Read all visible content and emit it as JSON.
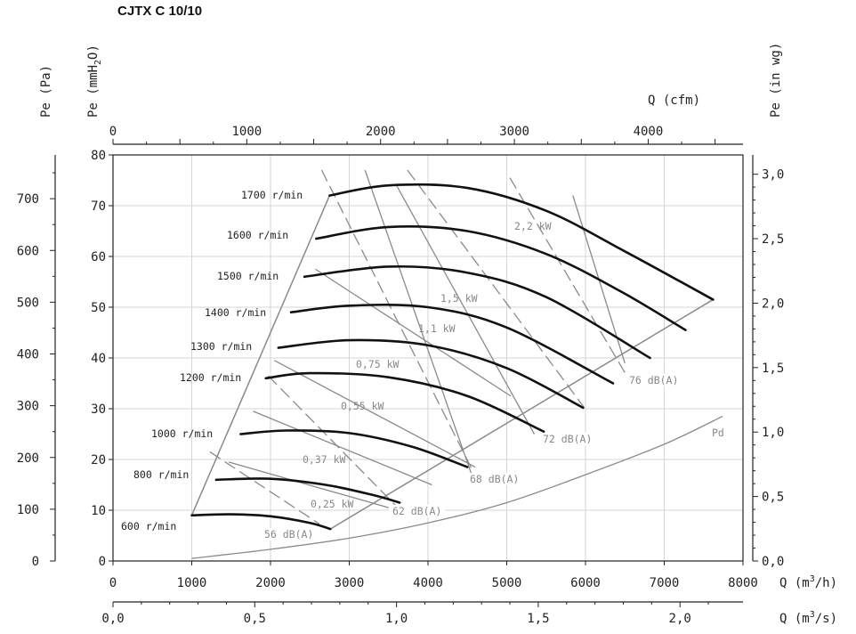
{
  "title": "CJTX C 10/10",
  "axes": {
    "left_pa_label": "Pe  (Pa)",
    "left_mmh2o_label": "Pe  (mmH",
    "left_mmh2o_sub": "2",
    "left_mmh2o_end": "O)",
    "right_label": "Pe  (in wg)",
    "top_label": "Q  (cfm)",
    "bottom_m3h_label": "Q  (m",
    "bottom_m3h_sup": "3",
    "bottom_m3h_end": "/h)",
    "bottom_m3s_label": "Q  (m",
    "bottom_m3s_sup": "3",
    "bottom_m3s_end": "/s)"
  },
  "chart_data": {
    "type": "line",
    "xlabel": "Q (m3/h)",
    "ylabel": "Pe (mmH2O)",
    "xlim": [
      0,
      8000
    ],
    "ylim": [
      0,
      80
    ],
    "grid": true,
    "ticks": {
      "m3h": [
        "0",
        "1000",
        "2000",
        "3000",
        "4000",
        "5000",
        "6000",
        "7000",
        "8000"
      ],
      "mmh2o": [
        "0",
        "10",
        "20",
        "30",
        "40",
        "50",
        "60",
        "70",
        "80"
      ],
      "pa": [
        {
          "v": 0,
          "t": "0"
        },
        {
          "v": 100,
          "t": "100"
        },
        {
          "v": 200,
          "t": "200"
        },
        {
          "v": 300,
          "t": "300"
        },
        {
          "v": 400,
          "t": "400"
        },
        {
          "v": 500,
          "t": "500"
        },
        {
          "v": 600,
          "t": "600"
        },
        {
          "v": 700,
          "t": "700"
        }
      ],
      "cfm": [
        {
          "v": 0,
          "t": "0"
        },
        {
          "v": 1000,
          "t": "1000"
        },
        {
          "v": 2000,
          "t": "2000"
        },
        {
          "v": 3000,
          "t": "3000"
        },
        {
          "v": 4000,
          "t": "4000"
        }
      ],
      "inwg": [
        {
          "v": 0,
          "t": "0,0"
        },
        {
          "v": 0.5,
          "t": "0,5"
        },
        {
          "v": 1.0,
          "t": "1,0"
        },
        {
          "v": 1.5,
          "t": "1,5"
        },
        {
          "v": 2.0,
          "t": "2,0"
        },
        {
          "v": 2.5,
          "t": "2,5"
        },
        {
          "v": 3.0,
          "t": "3,0"
        }
      ],
      "m3s": [
        {
          "v": 0,
          "t": "0,0"
        },
        {
          "v": 0.5,
          "t": "0,5"
        },
        {
          "v": 1.0,
          "t": "1,0"
        },
        {
          "v": 1.5,
          "t": "1,5"
        },
        {
          "v": 2.0,
          "t": "2,0"
        }
      ]
    },
    "speed_curves": [
      {
        "name": "600 r/min",
        "points": [
          [
            1000,
            9
          ],
          [
            1500,
            9.2
          ],
          [
            2000,
            8.8
          ],
          [
            2500,
            7.5
          ],
          [
            2760,
            6.3
          ]
        ]
      },
      {
        "name": "800 r/min",
        "points": [
          [
            1310,
            16
          ],
          [
            2000,
            16.2
          ],
          [
            2700,
            15
          ],
          [
            3300,
            13
          ],
          [
            3640,
            11.5
          ]
        ]
      },
      {
        "name": "1000 r/min",
        "points": [
          [
            1620,
            25
          ],
          [
            2200,
            25.7
          ],
          [
            3000,
            25.2
          ],
          [
            3800,
            22.5
          ],
          [
            4500,
            18.5
          ]
        ]
      },
      {
        "name": "1200 r/min",
        "points": [
          [
            1940,
            36
          ],
          [
            2500,
            37
          ],
          [
            3500,
            36.2
          ],
          [
            4500,
            32.5
          ],
          [
            5470,
            25.5
          ]
        ]
      },
      {
        "name": "1300 r/min",
        "points": [
          [
            2100,
            42
          ],
          [
            3000,
            43.5
          ],
          [
            4000,
            42.5
          ],
          [
            5000,
            38
          ],
          [
            5970,
            30.2
          ]
        ]
      },
      {
        "name": "1400 r/min",
        "points": [
          [
            2260,
            49
          ],
          [
            3000,
            50.3
          ],
          [
            4000,
            50
          ],
          [
            5000,
            46
          ],
          [
            6350,
            35
          ]
        ]
      },
      {
        "name": "1500 r/min",
        "points": [
          [
            2430,
            56
          ],
          [
            3500,
            58
          ],
          [
            4500,
            56.8
          ],
          [
            5500,
            52
          ],
          [
            6820,
            40
          ]
        ]
      },
      {
        "name": "1600 r/min",
        "points": [
          [
            2580,
            63.5
          ],
          [
            3500,
            65.8
          ],
          [
            4500,
            65
          ],
          [
            5500,
            60.5
          ],
          [
            6460,
            53
          ],
          [
            7270,
            45.5
          ]
        ]
      },
      {
        "name": "1700 r/min",
        "points": [
          [
            2750,
            72
          ],
          [
            3500,
            74
          ],
          [
            4500,
            73.5
          ],
          [
            5500,
            69
          ],
          [
            6500,
            61
          ],
          [
            7620,
            51.5
          ]
        ]
      }
    ],
    "boundary_left": [
      [
        1000,
        9
      ],
      [
        2750,
        72
      ]
    ],
    "boundary_right": [
      [
        2760,
        6.3
      ],
      [
        7620,
        51.5
      ]
    ],
    "pd_curve": {
      "name": "Pd",
      "points": [
        [
          1000,
          0.5
        ],
        [
          2000,
          2.3
        ],
        [
          3000,
          4.5
        ],
        [
          4000,
          7.5
        ],
        [
          5000,
          11.5
        ],
        [
          6000,
          17
        ],
        [
          7000,
          23
        ],
        [
          7740,
          28.5
        ]
      ]
    },
    "power_lines": [
      {
        "name": "0,25 kW",
        "p1": [
          1470,
          19.5
        ],
        "p2": [
          3500,
          10.5
        ]
      },
      {
        "name": "0,37 kW",
        "p1": [
          1780,
          29.5
        ],
        "p2": [
          4050,
          15
        ]
      },
      {
        "name": "0,55 kW",
        "p1": [
          2050,
          39.5
        ],
        "p2": [
          4600,
          18.5
        ]
      },
      {
        "name": "0,75 kW",
        "p1": [
          2570,
          57.5
        ],
        "p2": [
          5050,
          32.5
        ]
      },
      {
        "name": "1,1 kW",
        "p1": [
          3200,
          77
        ],
        "p2": [
          4600,
          15
        ]
      },
      {
        "name": "1,5 kW",
        "p1": [
          3600,
          74
        ],
        "p2": [
          5350,
          25
        ]
      },
      {
        "name": "2,2 kW",
        "p1": [
          5840,
          72
        ],
        "p2": [
          6500,
          39
        ]
      }
    ],
    "db_lines": [
      {
        "name": "56 dB(A)",
        "p1": [
          1230,
          21.5
        ],
        "p2": [
          2620,
          7.3
        ]
      },
      {
        "name": "62 dB(A)",
        "p1": [
          1970,
          36.5
        ],
        "p2": [
          3610,
          10.6
        ]
      },
      {
        "name": "68 dB(A)",
        "p1": [
          2650,
          77
        ],
        "p2": [
          4570,
          17.7
        ]
      },
      {
        "name": "72 dB(A)",
        "p1": [
          3740,
          77
        ],
        "p2": [
          5980,
          30.3
        ]
      },
      {
        "name": "76 dB(A)",
        "p1": [
          5040,
          75.5
        ],
        "p2": [
          6580,
          35
        ]
      }
    ],
    "series_labels": [
      "600 r/min",
      "800 r/min",
      "1000 r/min",
      "1200 r/min",
      "1300 r/min",
      "1400 r/min",
      "1500 r/min",
      "1600 r/min",
      "1700 r/min",
      "2,2 kW",
      "1,5 kW",
      "1,1 kW",
      "0,75 kW",
      "0,55 kW",
      "0,37 kW",
      "0,25 kW",
      "56 dB(A)",
      "62 dB(A)",
      "68 dB(A)",
      "72 dB(A)",
      "76 dB(A)",
      "Pd"
    ]
  },
  "colors": {
    "axis": "#222222",
    "grid": "#d6d6d6",
    "curve": "#111111",
    "power": "#8a8a8a",
    "db": "#8a8a8a",
    "pd": "#8a8a8a"
  }
}
